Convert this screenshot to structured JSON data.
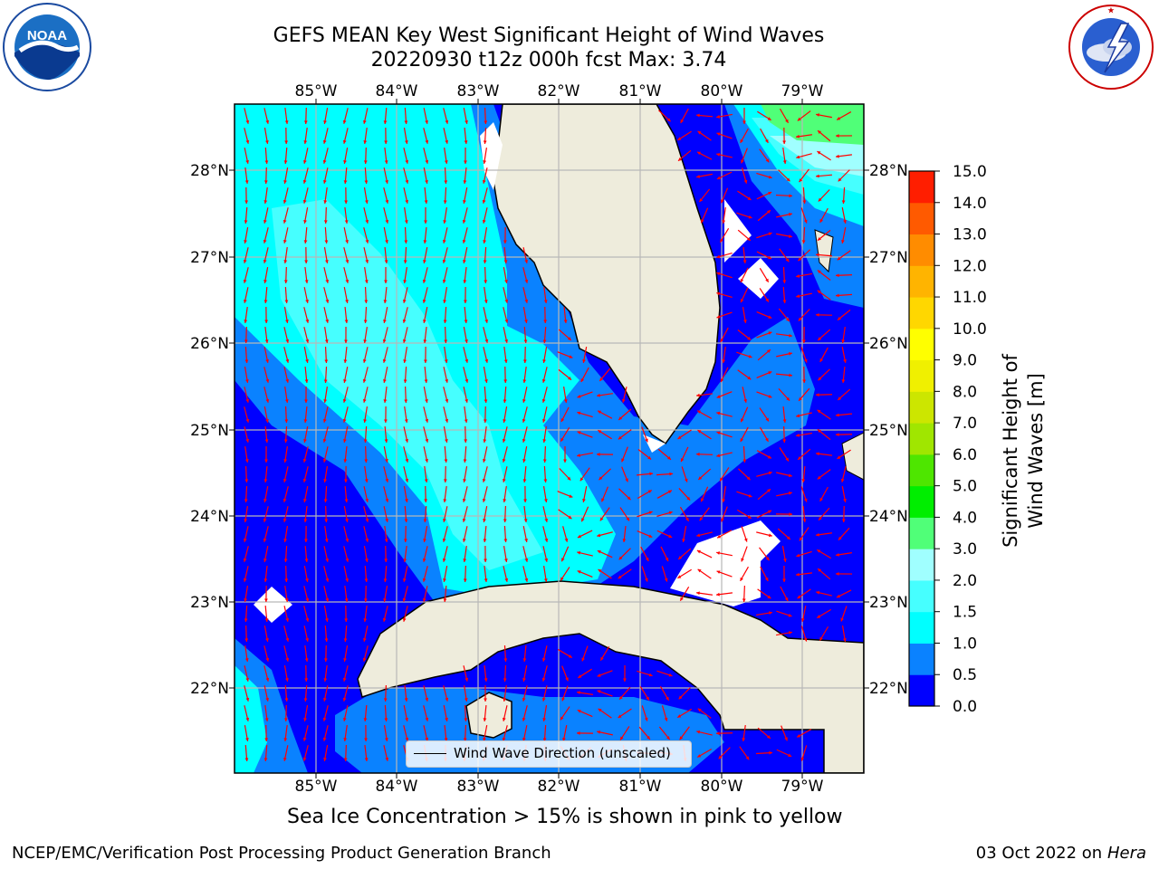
{
  "title": {
    "line1": "GEFS MEAN Key West Significant Height of Wind Waves",
    "line2": "20220930 t12z 000h fcst   Max: 3.74"
  },
  "logos": {
    "left": {
      "text": "NOAA",
      "ring_text": "NATIONAL OCEANIC AND ATMOSPHERIC ADMINISTRATION · U.S. DEPARTMENT OF COMMERCE"
    },
    "right": {
      "ring_text": "NATIONAL WEATHER SERVICE"
    }
  },
  "map": {
    "lon_ticks": [
      "85°W",
      "84°W",
      "83°W",
      "82°W",
      "81°W",
      "80°W",
      "79°W"
    ],
    "lat_ticks": [
      "28°N",
      "27°N",
      "26°N",
      "25°N",
      "24°N",
      "23°N",
      "22°N"
    ],
    "lon_range": [
      -86.0,
      -78.3
    ],
    "lat_range": [
      21.1,
      28.75
    ],
    "legend_label": "Wind Wave Direction (unscaled)",
    "arrow_color": "#ff0000",
    "land_color": "#eeecdc"
  },
  "colorbar": {
    "label": "Significant Height of Wind Waves [m]",
    "ticks": [
      "0.0",
      "0.5",
      "1.0",
      "1.5",
      "2.0",
      "3.0",
      "4.0",
      "5.0",
      "6.0",
      "7.0",
      "8.0",
      "9.0",
      "10.0",
      "11.0",
      "12.0",
      "13.0",
      "14.0",
      "15.0"
    ],
    "colors": [
      "#0000ff",
      "#0a82ff",
      "#00ffff",
      "#46ffff",
      "#a0ffff",
      "#50ff78",
      "#00ee00",
      "#4ee600",
      "#a0e600",
      "#cce600",
      "#f0f000",
      "#ffff00",
      "#ffd700",
      "#ffb400",
      "#ff8c00",
      "#ff5a00",
      "#ff1e00"
    ]
  },
  "caption": "Sea Ice Concentration > 15% is shown in pink to yellow",
  "footer": {
    "left": "NCEP/EMC/Verification Post Processing Product Generation Branch",
    "right_date": "03 Oct 2022 on ",
    "right_host": "Hera"
  }
}
